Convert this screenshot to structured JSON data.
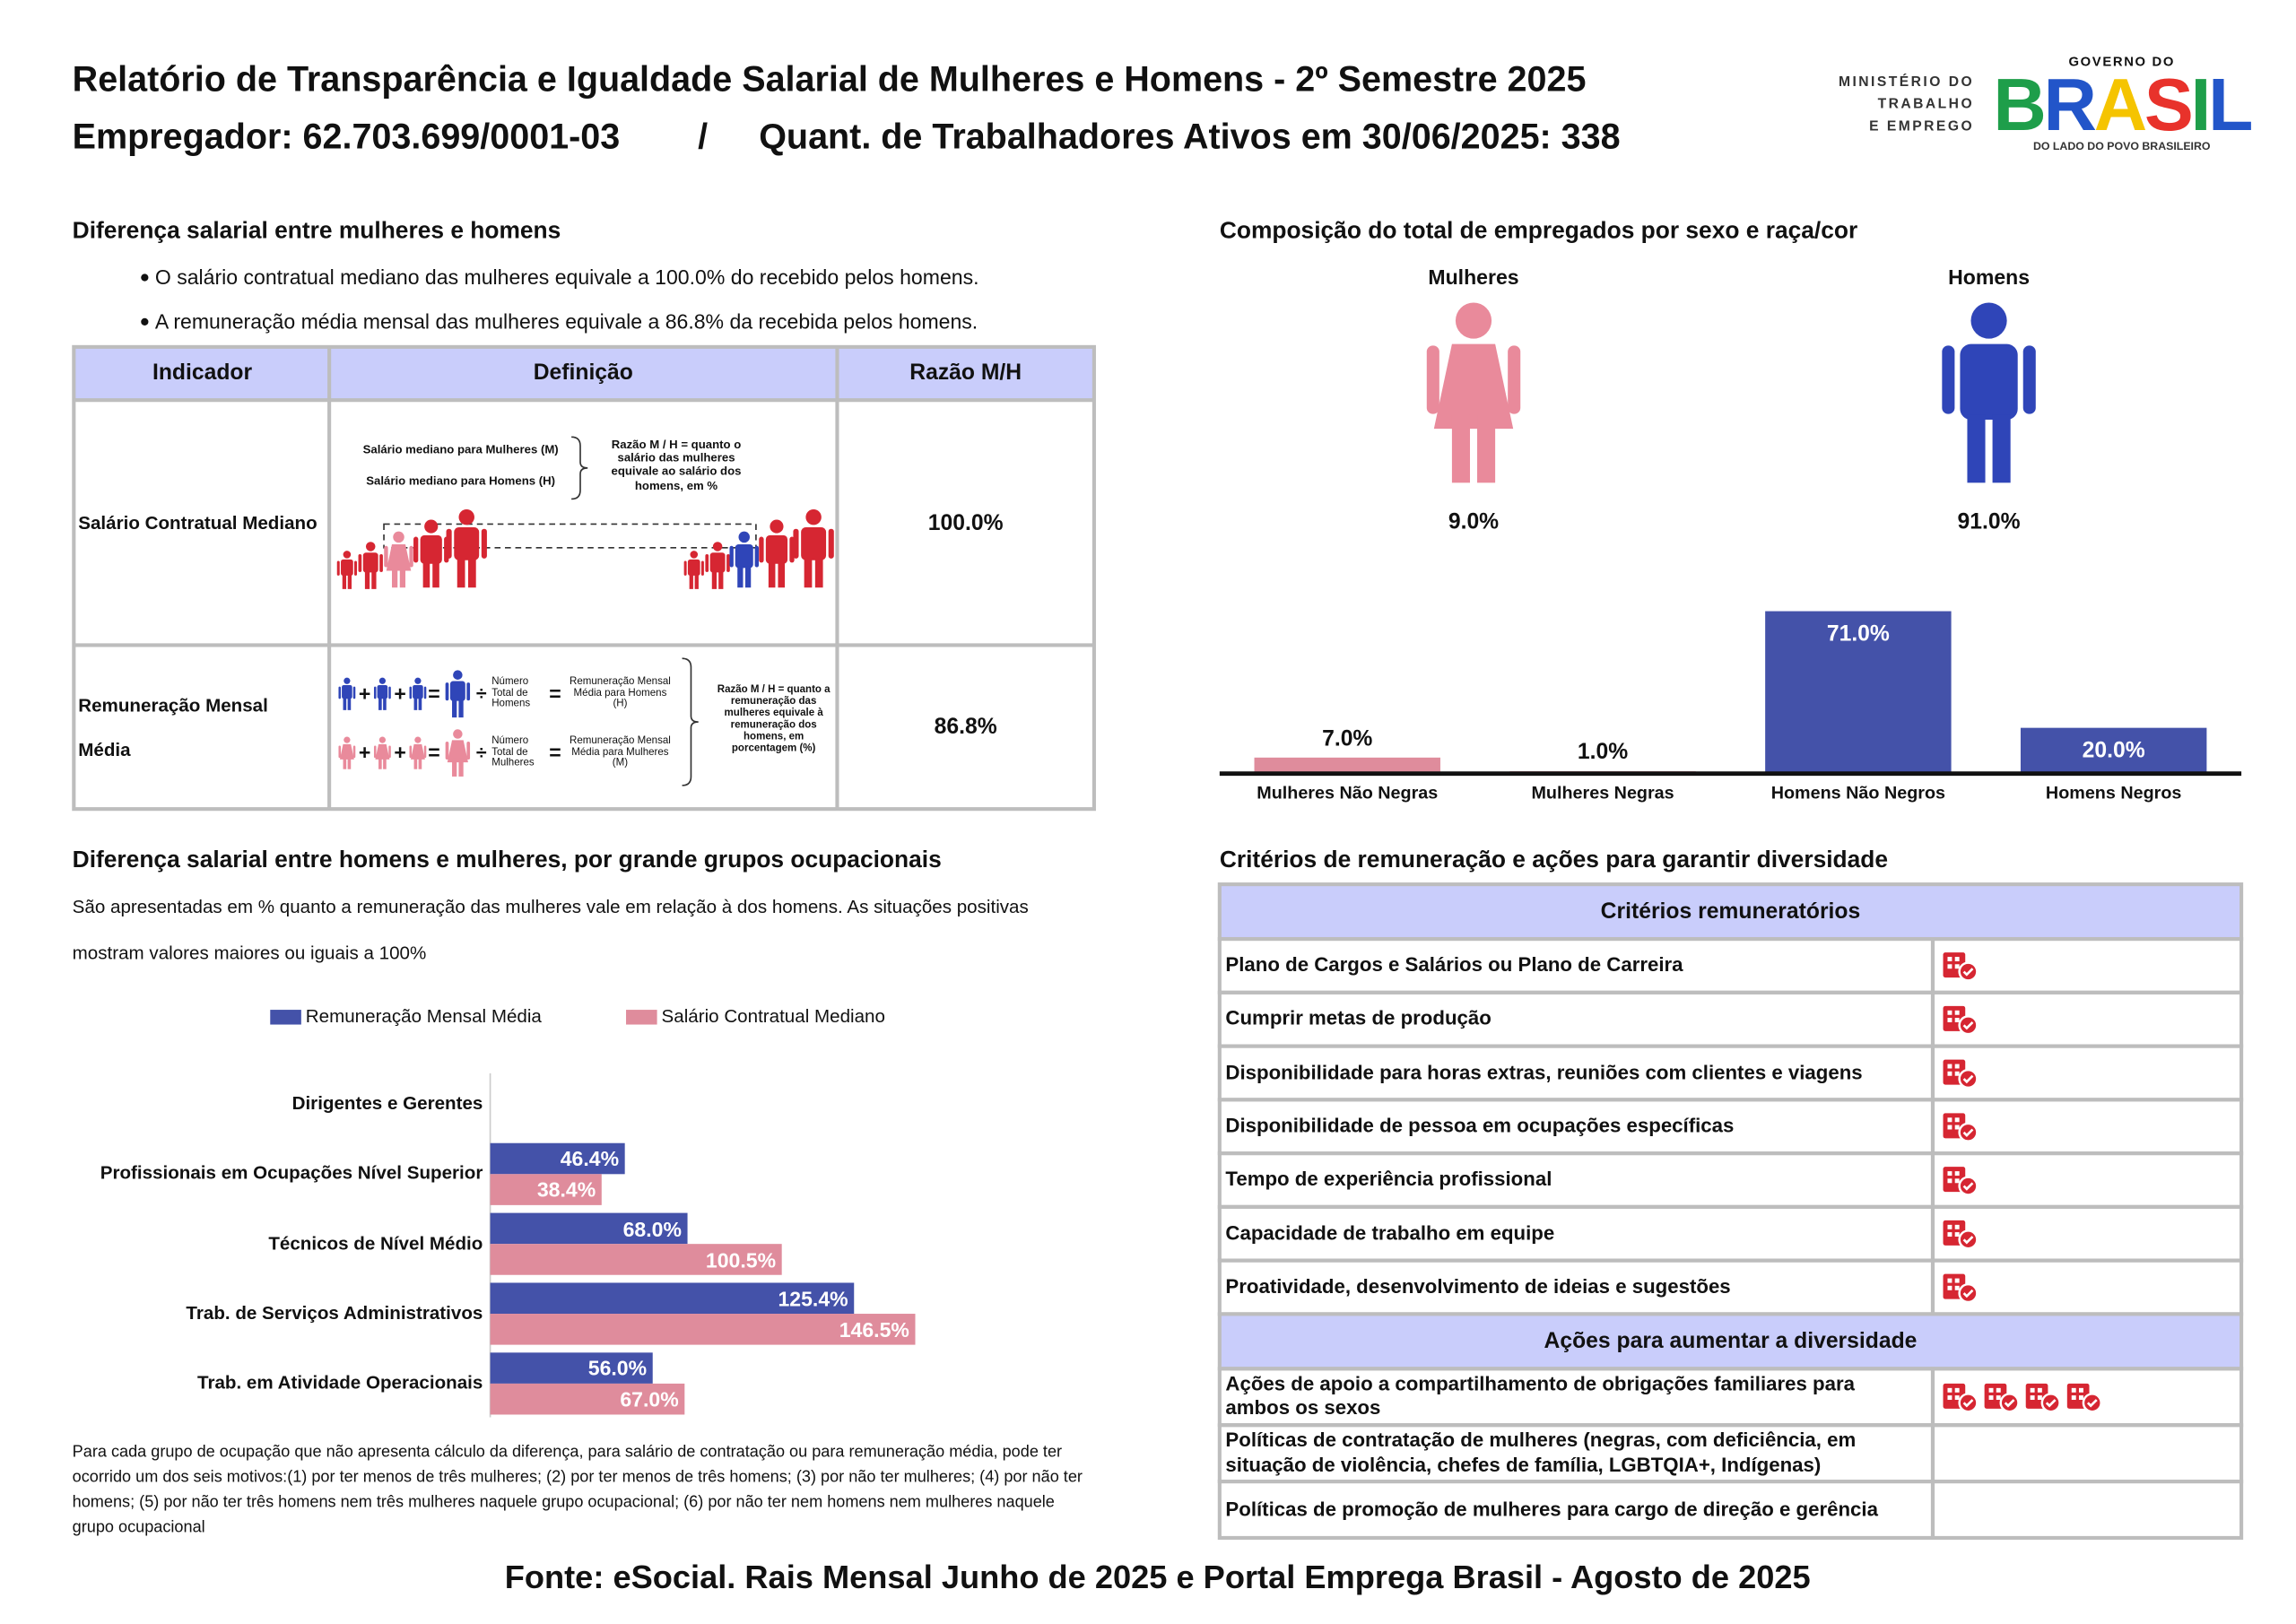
{
  "header": {
    "title": "Relatório de Transparência e Igualdade Salarial de Mulheres e Homens - 2º Semestre 2025",
    "employer": "Empregador: 62.703.699/0001-03",
    "separator": "/",
    "workers": "Quant. de Trabalhadores Ativos em 30/06/2025: 338"
  },
  "logos": {
    "ministry": [
      "MINISTÉRIO DO",
      "TRABALHO",
      "E EMPREGO"
    ],
    "government": "GOVERNO DO",
    "brand": "BRASIL",
    "slogan": "DO LADO DO POVO BRASILEIRO"
  },
  "salary_gap": {
    "title": "Diferença salarial entre mulheres e homens",
    "bullets": [
      "O salário contratual mediano das mulheres equivale a 100.0% do recebido pelos homens.",
      "A remuneração média mensal das mulheres equivale a 86.8% da recebida pelos homens."
    ],
    "table": {
      "columns": [
        "Indicador",
        "Definição",
        "Razão M/H"
      ],
      "rows": [
        {
          "indicator": "Salário Contratual Mediano",
          "definition": {
            "women": "Salário mediano para Mulheres (M)",
            "men": "Salário mediano para Homens (H)",
            "ratio": "Razão M / H = quanto o salário das mulheres equivale ao salário dos homens, em %"
          },
          "ratio": "100.0%"
        },
        {
          "indicator": "Remuneração Mensal Média",
          "definition": {
            "plus": "+",
            "equals": "=",
            "divide": "÷",
            "men_count": "Número Total de Homens",
            "men_pay": "Remuneração Mensal Média para Homens (H)",
            "women_count": "Número Total de Mulheres",
            "women_pay": "Remuneração Mensal Média para Mulheres (M)",
            "ratio": "Razão M / H = quanto a remuneração das mulheres equivale à remuneração dos homens, em porcentagem (%)"
          },
          "ratio": "86.8%"
        }
      ]
    }
  },
  "composition": {
    "women": {
      "label": "Mulheres",
      "share": "9.0%",
      "color": "#e98a9b"
    },
    "men": {
      "label": "Homens",
      "share": "91.0%",
      "color": "#2f45b8"
    }
  },
  "chart_data": [
    {
      "type": "bar",
      "title": "Composição do total de empregados por sexo e raça/cor",
      "categories": [
        "Mulheres Não Negras",
        "Mulheres Negras",
        "Homens Não Negros",
        "Homens Negros"
      ],
      "values": [
        7.0,
        1.0,
        71.0,
        20.0
      ],
      "value_labels": [
        "7.0%",
        "1.0%",
        "71.0%",
        "20.0%"
      ],
      "colors": [
        "#df8c9c",
        "#df8c9c",
        "#4452a9",
        "#4452a9"
      ]
    },
    {
      "type": "hbar",
      "title": "Diferença salarial entre homens e mulheres, por grande grupos ocupacionais",
      "subtitle": [
        "São apresentadas em % quanto a remuneração das mulheres vale em relação à dos homens. As situações positivas",
        "mostram valores maiores ou iguais a 100%"
      ],
      "categories": [
        "Dirigentes e Gerentes",
        "Profissionais em Ocupações Nível Superior",
        "Técnicos de Nível Médio",
        "Trab. de Serviços Administrativos",
        "Trab. em Atividade Operacionais"
      ],
      "series": [
        {
          "name": "Remuneração Mensal Média",
          "color": "#4452a9",
          "values": [
            null,
            46.4,
            68.0,
            125.4,
            56.0
          ],
          "value_labels": [
            null,
            "46.4%",
            "68.0%",
            "125.4%",
            "56.0%"
          ]
        },
        {
          "name": "Salário Contratual Mediano",
          "color": "#df8c9c",
          "values": [
            null,
            38.4,
            100.5,
            146.5,
            67.0
          ],
          "value_labels": [
            null,
            "38.4%",
            "100.5%",
            "146.5%",
            "67.0%"
          ]
        }
      ],
      "note": "Para cada grupo de ocupação que não apresenta cálculo da diferença, para salário de contratação ou para remuneração média, pode ter ocorrido um dos seis motivos:(1) por ter menos de três mulheres; (2) por ter menos de três homens; (3) por não ter mulheres; (4) por não ter homens; (5) por não ter três homens nem três mulheres naquele grupo ocupacional; (6) por não ter nem homens nem mulheres naquele grupo ocupacional"
    }
  ],
  "criteria": {
    "title": "Critérios de remuneração e ações para garantir diversidade",
    "sections": [
      {
        "heading": "Critérios remuneratórios",
        "rows": [
          {
            "label": "Plano de Cargos e Salários ou Plano de Carreira",
            "icons": 1
          },
          {
            "label": "Cumprir metas de produção",
            "icons": 1
          },
          {
            "label": "Disponibilidade para horas extras, reuniões com clientes e viagens",
            "icons": 1
          },
          {
            "label": "Disponibilidade de pessoa em ocupações específicas",
            "icons": 1
          },
          {
            "label": "Tempo de experiência profissional",
            "icons": 1
          },
          {
            "label": "Capacidade de trabalho em equipe",
            "icons": 1
          },
          {
            "label": "Proatividade, desenvolvimento de ideias e sugestões",
            "icons": 1
          }
        ]
      },
      {
        "heading": "Ações para aumentar a diversidade",
        "rows": [
          {
            "label": "Ações de apoio a compartilhamento de obrigações familiares para ambos os sexos",
            "icons": 4
          },
          {
            "label": "Políticas de contratação de mulheres (negras, com deficiência, em situação de violência, chefes de família, LGBTQIA+, Indígenas)",
            "icons": 0
          },
          {
            "label": "Políticas de promoção de mulheres para cargo de direção e gerência",
            "icons": 0
          }
        ]
      }
    ]
  },
  "footer": "Fonte: eSocial. Rais Mensal Junho de 2025 e Portal Emprega Brasil - Agosto de 2025"
}
